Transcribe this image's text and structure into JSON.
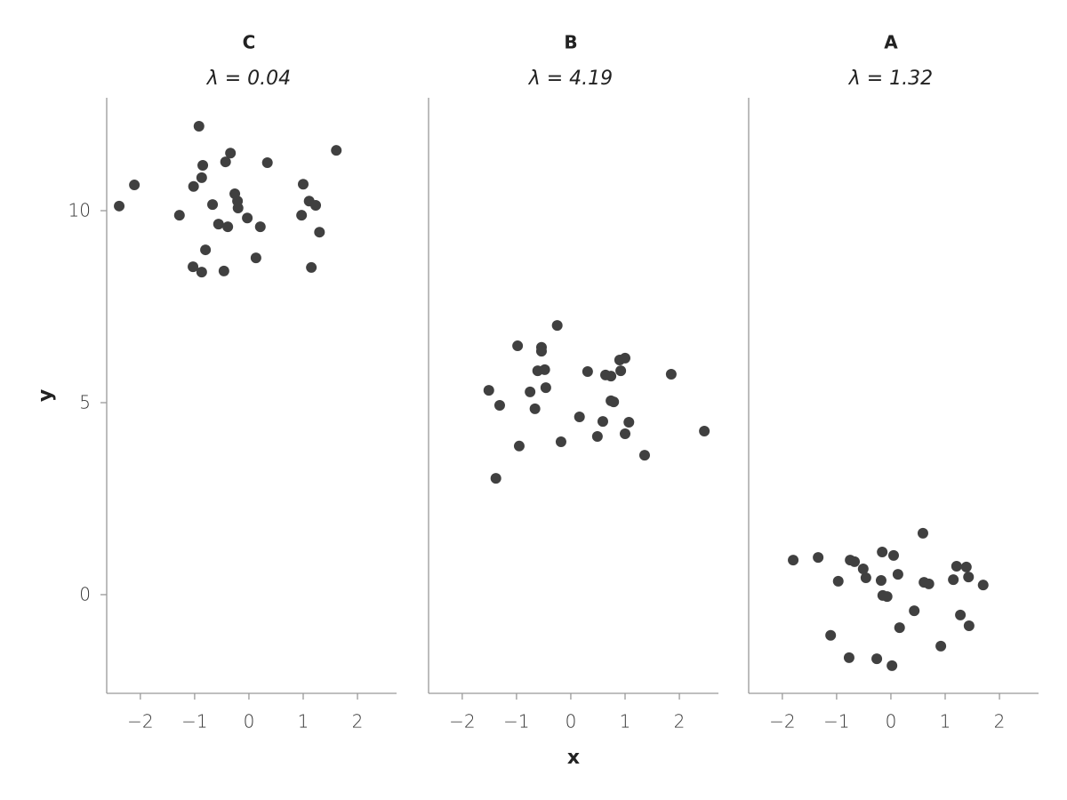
{
  "chart_data": [
    {
      "type": "scatter",
      "title": "C",
      "subtitle": "λ = 0.04",
      "ylabel": "y",
      "color": "#404040",
      "x": [
        -2.39,
        -2.11,
        -0.92,
        1.61,
        -0.34,
        -0.85,
        -0.43,
        0.34,
        -0.87,
        -1.02,
        1.0,
        -0.26,
        -0.21,
        -0.67,
        -0.2,
        1.11,
        1.23,
        -1.28,
        -0.03,
        0.97,
        -0.56,
        -0.39,
        0.21,
        1.3,
        -0.8,
        0.13,
        -1.03,
        -0.87,
        -0.46,
        1.15
      ],
      "y": [
        10.12,
        10.67,
        12.2,
        11.57,
        11.5,
        11.18,
        11.27,
        11.25,
        10.86,
        10.63,
        10.69,
        10.44,
        10.25,
        10.16,
        10.07,
        10.25,
        10.14,
        9.88,
        9.81,
        9.88,
        9.65,
        9.58,
        9.58,
        9.44,
        8.98,
        8.77,
        8.54,
        8.4,
        8.43,
        8.52
      ],
      "xlim": [
        -2.62,
        2.72
      ],
      "ylim": [
        -2.57,
        12.94
      ],
      "xticks": [
        {
          "value": -2,
          "label": "−2"
        },
        {
          "value": -1,
          "label": "−1"
        },
        0,
        1,
        2
      ],
      "yticks": [
        0,
        5,
        10
      ]
    },
    {
      "type": "scatter",
      "title": "B",
      "subtitle": "λ = 4.19",
      "xlabel": "x",
      "color": "#404040",
      "x": [
        -0.25,
        -0.98,
        -0.54,
        -0.54,
        1.0,
        0.9,
        -0.61,
        -0.48,
        0.31,
        0.92,
        1.85,
        0.64,
        0.74,
        -1.51,
        -0.46,
        -0.75,
        0.74,
        0.79,
        -1.31,
        -0.66,
        0.16,
        0.59,
        1.07,
        2.46,
        0.49,
        1.0,
        -0.18,
        -0.95,
        1.36,
        -1.38
      ],
      "y": [
        7.01,
        6.48,
        6.44,
        6.34,
        6.16,
        6.11,
        5.83,
        5.86,
        5.81,
        5.83,
        5.74,
        5.72,
        5.69,
        5.32,
        5.39,
        5.28,
        5.05,
        5.02,
        4.93,
        4.84,
        4.63,
        4.51,
        4.49,
        4.26,
        4.12,
        4.19,
        3.98,
        3.87,
        3.63,
        3.03
      ],
      "xlim": [
        -2.62,
        2.72
      ],
      "ylim": [
        -2.57,
        12.94
      ],
      "xticks": [
        {
          "value": -2,
          "label": "−2"
        },
        {
          "value": -1,
          "label": "−1"
        },
        0,
        1,
        2
      ]
    },
    {
      "type": "scatter",
      "title": "A",
      "subtitle": "λ = 1.32",
      "color": "#404040",
      "x": [
        0.59,
        -1.8,
        -1.34,
        -0.75,
        -0.67,
        -0.16,
        0.05,
        -0.51,
        1.21,
        1.39,
        0.13,
        -0.97,
        -0.46,
        -0.18,
        1.43,
        1.15,
        0.61,
        0.7,
        1.7,
        -0.15,
        -0.07,
        0.43,
        1.28,
        0.16,
        1.44,
        -1.11,
        0.92,
        -0.77,
        -0.26,
        0.02
      ],
      "y": [
        1.6,
        0.9,
        0.97,
        0.9,
        0.86,
        1.11,
        1.02,
        0.67,
        0.74,
        0.72,
        0.53,
        0.35,
        0.44,
        0.37,
        0.46,
        0.39,
        0.32,
        0.28,
        0.25,
        -0.02,
        -0.05,
        -0.42,
        -0.53,
        -0.86,
        -0.81,
        -1.06,
        -1.34,
        -1.64,
        -1.67,
        -1.85
      ],
      "xlim": [
        -2.62,
        2.72
      ],
      "ylim": [
        -2.57,
        12.94
      ],
      "xticks": [
        {
          "value": -2,
          "label": "−2"
        },
        {
          "value": -1,
          "label": "−1"
        },
        0,
        1,
        2
      ]
    }
  ]
}
